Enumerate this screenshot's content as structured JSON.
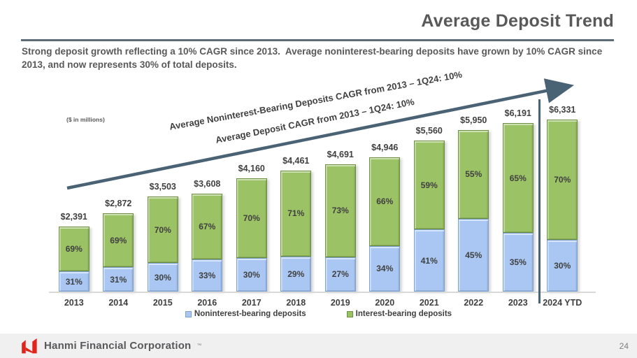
{
  "header": {
    "title": "Average Deposit Trend"
  },
  "intro": {
    "text": "Strong deposit growth reflecting a 10% CAGR since 2013.  Average noninterest-bearing deposits have grown by 10% CAGR since 2013, and now represents 30% of total deposits."
  },
  "chart_notes": {
    "units": "($ in millions)",
    "arrow_annotation_1": "Average Noninterest-Bearing Deposits CAGR from 2013 – 1Q24: 10%",
    "arrow_annotation_2": "Average Deposit CAGR from 2013 – 1Q24: 10%"
  },
  "chart_data": {
    "type": "bar",
    "stacked": true,
    "units": "$ in millions",
    "categories": [
      "2013",
      "2014",
      "2015",
      "2016",
      "2017",
      "2018",
      "2019",
      "2020",
      "2021",
      "2022",
      "2023",
      "2024 YTD"
    ],
    "totals": [
      2391,
      2872,
      3503,
      3608,
      4160,
      4461,
      4691,
      4946,
      5560,
      5950,
      6191,
      6331
    ],
    "total_labels": [
      "$2,391",
      "$2,872",
      "$3,503",
      "$3,608",
      "$4,160",
      "$4,461",
      "$4,691",
      "$4,946",
      "$5,560",
      "$5,950",
      "$6,191",
      "$6,331"
    ],
    "series": [
      {
        "name": "Noninterest-bearing deposits",
        "color": "#a9c7f2",
        "border_color": "#7ca0cf",
        "pct": [
          31,
          31,
          30,
          33,
          30,
          29,
          27,
          34,
          41,
          45,
          35,
          30
        ]
      },
      {
        "name": "Interest-bearing deposits",
        "color": "#9cc266",
        "border_color": "#6c9040",
        "pct": [
          69,
          69,
          70,
          67,
          70,
          71,
          73,
          66,
          59,
          55,
          65,
          70
        ]
      }
    ],
    "pct_label_suffix": "%",
    "legend_position": "bottom",
    "separator_before_category": "2024 YTD",
    "ylim": [
      0,
      6331
    ],
    "grid": false
  },
  "footer": {
    "logo_text": "Hanmi Financial Corporation",
    "trademark": "™",
    "page_number": "24"
  },
  "colors": {
    "arrow": "#4a6374",
    "title_rule": "#5c6b75",
    "text_primary": "#595959",
    "label_text": "#404040",
    "noninterest_fill": "#a9c7f2",
    "interest_fill": "#9cc266",
    "footer_bg": "#f0f0f1",
    "logo_red": "#e0241c"
  }
}
